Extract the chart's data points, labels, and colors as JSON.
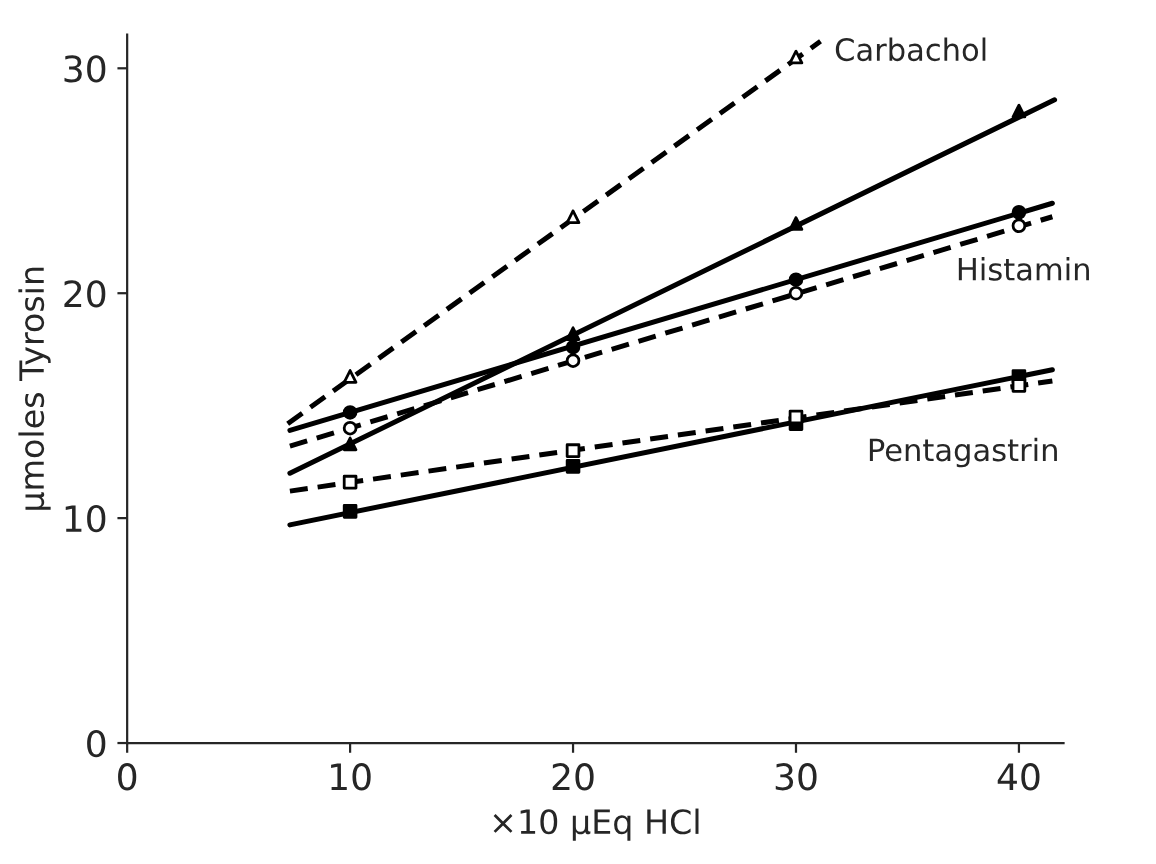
{
  "chart_data": {
    "type": "line",
    "xlabel": "×10 µEq HCl",
    "ylabel": "µmoles Tyrosin",
    "xlim": [
      0,
      42
    ],
    "ylim": [
      0,
      31.5
    ],
    "xticks": [
      0,
      10,
      20,
      30,
      40
    ],
    "yticks": [
      0,
      10,
      20,
      30
    ],
    "grid": false,
    "legend": false,
    "series": [
      {
        "x": [
          7.2,
          31.1
        ],
        "values": [
          14.2,
          31.2
        ],
        "color": "#000000",
        "line_style": "dashed",
        "marker": "none"
      },
      {
        "type": "scatter",
        "x": [
          10,
          20,
          30
        ],
        "values": [
          16.3,
          23.4,
          30.5
        ],
        "color": "#ffffff",
        "marker": "triangle"
      },
      {
        "x": [
          7.3,
          41.6
        ],
        "values": [
          12.0,
          28.6
        ],
        "color": "#000000",
        "line_style": "solid",
        "marker": "none"
      },
      {
        "type": "scatter",
        "x": [
          10,
          20,
          30,
          40
        ],
        "values": [
          13.3,
          18.2,
          23.1,
          28.1
        ],
        "color": "#000000",
        "marker": "triangle"
      },
      {
        "x": [
          7.3,
          41.5
        ],
        "values": [
          13.9,
          24.0
        ],
        "color": "#000000",
        "line_style": "solid",
        "marker": "none"
      },
      {
        "type": "scatter",
        "x": [
          10,
          20,
          30,
          40
        ],
        "values": [
          14.7,
          17.6,
          20.6,
          23.6
        ],
        "color": "#000000",
        "marker": "circle"
      },
      {
        "x": [
          7.3,
          41.5
        ],
        "values": [
          13.2,
          23.4
        ],
        "color": "#000000",
        "line_style": "dashed",
        "marker": "none"
      },
      {
        "type": "scatter",
        "x": [
          10,
          20,
          30,
          40
        ],
        "values": [
          14.0,
          17.0,
          20.0,
          23.0
        ],
        "color": "#ffffff",
        "marker": "circle"
      },
      {
        "x": [
          7.3,
          41.5
        ],
        "values": [
          9.7,
          16.6
        ],
        "color": "#000000",
        "line_style": "solid",
        "marker": "none"
      },
      {
        "type": "scatter",
        "x": [
          10,
          20,
          30,
          40
        ],
        "values": [
          10.3,
          12.3,
          14.2,
          16.3
        ],
        "color": "#000000",
        "marker": "square"
      },
      {
        "x": [
          7.3,
          41.5
        ],
        "values": [
          11.2,
          16.1
        ],
        "color": "#000000",
        "line_style": "dashed",
        "marker": "none"
      },
      {
        "type": "scatter",
        "x": [
          10,
          20,
          30,
          40
        ],
        "values": [
          11.6,
          13.0,
          14.5,
          15.9
        ],
        "color": "#ffffff",
        "marker": "square"
      }
    ],
    "annotations": [
      "Carbachol",
      "Histamin",
      "Pentagastrin"
    ]
  }
}
